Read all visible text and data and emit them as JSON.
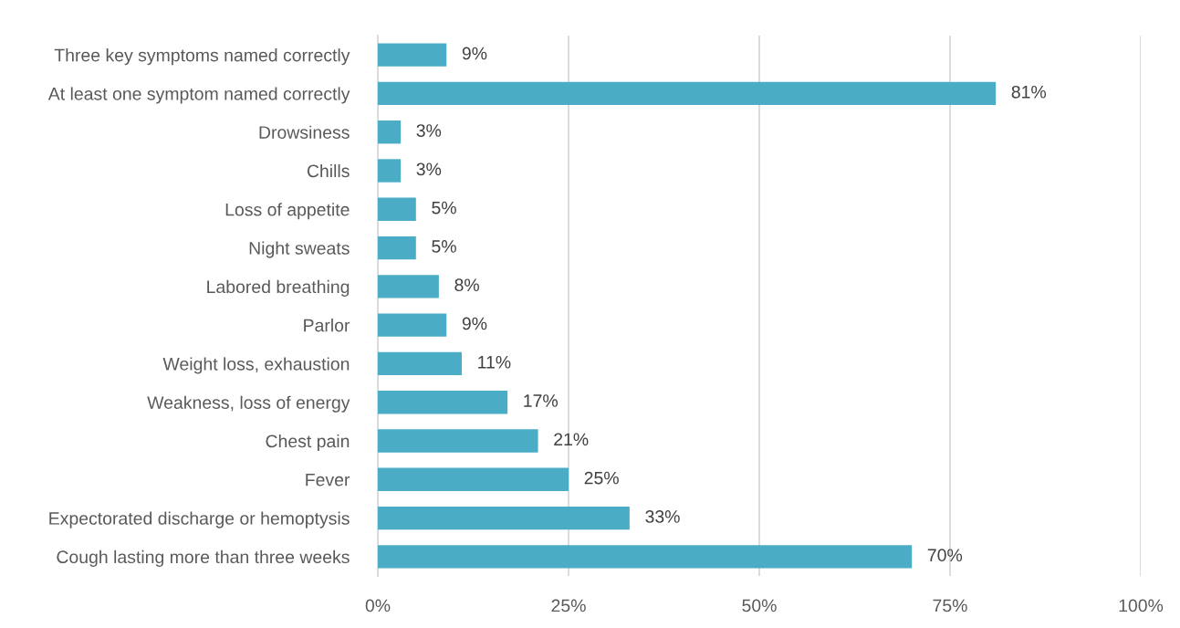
{
  "chart_data": {
    "type": "bar",
    "orientation": "horizontal",
    "categories": [
      "Three key symptoms named correctly",
      "At least one symptom named correctly",
      "Drowsiness",
      "Chills",
      "Loss of appetite",
      "Night sweats",
      "Labored breathing",
      "Parlor",
      "Weight loss, exhaustion",
      "Weakness, loss of energy",
      "Chest pain",
      "Fever",
      "Expectorated discharge or hemoptysis",
      "Cough lasting more than three weeks"
    ],
    "values": [
      9,
      81,
      3,
      3,
      5,
      5,
      8,
      9,
      11,
      17,
      21,
      25,
      33,
      70
    ],
    "value_labels": [
      "9%",
      "81%",
      "3%",
      "3%",
      "5%",
      "5%",
      "8%",
      "9%",
      "11%",
      "17%",
      "21%",
      "25%",
      "33%",
      "70%"
    ],
    "color": "#4bacc6",
    "xlim": [
      0,
      100
    ],
    "xticks": [
      {
        "value": 0,
        "label": "0%"
      },
      {
        "value": 25,
        "label": "25%"
      },
      {
        "value": 50,
        "label": "50%"
      },
      {
        "value": 75,
        "label": "75%"
      },
      {
        "value": 100,
        "label": "100%"
      }
    ],
    "grid": "x"
  }
}
